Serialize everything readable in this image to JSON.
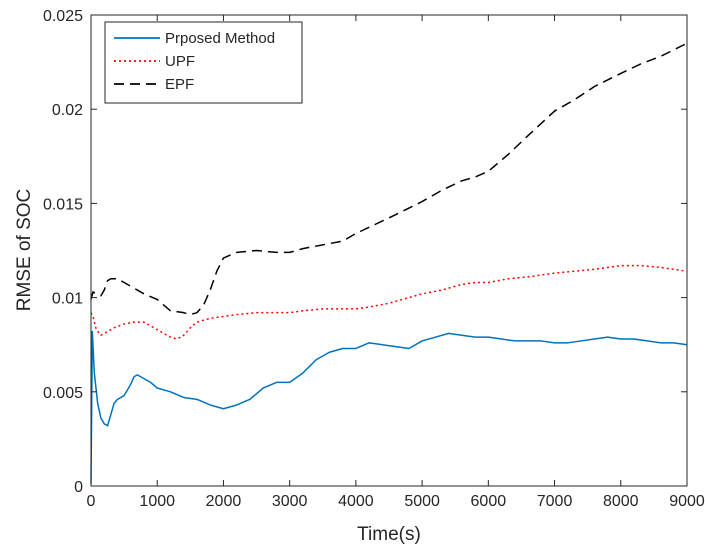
{
  "chart_data": {
    "type": "line",
    "title": "",
    "xlabel": "Time(s)",
    "ylabel": "RMSE of SOC",
    "xlim": [
      0,
      9000
    ],
    "ylim": [
      0,
      0.025
    ],
    "xticks": [
      0,
      1000,
      2000,
      3000,
      4000,
      5000,
      6000,
      7000,
      8000,
      9000
    ],
    "xtick_labels": [
      "0",
      "1000",
      "2000",
      "3000",
      "4000",
      "5000",
      "6000",
      "7000",
      "8000",
      "9000"
    ],
    "yticks": [
      0,
      0.005,
      0.01,
      0.015,
      0.02,
      0.025
    ],
    "ytick_labels": [
      "0",
      "0.005",
      "0.01",
      "0.015",
      "0.02",
      "0.025"
    ],
    "grid": false,
    "legend_position": "top-left",
    "series": [
      {
        "name": "Prposed Method",
        "color": "#0072BD",
        "style": "solid",
        "x": [
          0,
          20,
          50,
          100,
          150,
          200,
          250,
          300,
          350,
          400,
          500,
          600,
          650,
          700,
          800,
          900,
          1000,
          1200,
          1400,
          1600,
          1800,
          2000,
          2200,
          2400,
          2600,
          2800,
          3000,
          3200,
          3400,
          3600,
          3800,
          4000,
          4200,
          4400,
          4600,
          4800,
          5000,
          5200,
          5400,
          5600,
          5800,
          6000,
          6200,
          6400,
          6600,
          6800,
          7000,
          7200,
          7400,
          7600,
          7800,
          8000,
          8200,
          8400,
          8600,
          8800,
          9000
        ],
        "y": [
          0.0001,
          0.0082,
          0.006,
          0.0044,
          0.0036,
          0.0033,
          0.0032,
          0.0038,
          0.0044,
          0.0046,
          0.0048,
          0.0054,
          0.0058,
          0.0059,
          0.0057,
          0.0055,
          0.0052,
          0.005,
          0.0047,
          0.0046,
          0.0043,
          0.0041,
          0.0043,
          0.0046,
          0.0052,
          0.0055,
          0.0055,
          0.006,
          0.0067,
          0.0071,
          0.0073,
          0.0073,
          0.0076,
          0.0075,
          0.0074,
          0.0073,
          0.0077,
          0.0079,
          0.0081,
          0.008,
          0.0079,
          0.0079,
          0.0078,
          0.0077,
          0.0077,
          0.0077,
          0.0076,
          0.0076,
          0.0077,
          0.0078,
          0.0079,
          0.0078,
          0.0078,
          0.0077,
          0.0076,
          0.0076,
          0.0075
        ]
      },
      {
        "name": "UPF",
        "color": "#FF0000",
        "style": "dotted",
        "x": [
          0,
          30,
          80,
          150,
          250,
          350,
          500,
          650,
          800,
          1000,
          1200,
          1300,
          1400,
          1500,
          1600,
          1800,
          2000,
          2200,
          2500,
          2800,
          3000,
          3200,
          3500,
          3800,
          4000,
          4200,
          4500,
          4800,
          5000,
          5300,
          5600,
          5800,
          6000,
          6300,
          6600,
          7000,
          7300,
          7600,
          8000,
          8300,
          8600,
          9000
        ],
        "y": [
          0.0092,
          0.009,
          0.0083,
          0.008,
          0.0082,
          0.0084,
          0.0086,
          0.0087,
          0.0087,
          0.0083,
          0.0079,
          0.0078,
          0.008,
          0.0084,
          0.0087,
          0.0089,
          0.009,
          0.0091,
          0.0092,
          0.0092,
          0.0092,
          0.0093,
          0.0094,
          0.0094,
          0.0094,
          0.0095,
          0.0097,
          0.01,
          0.0102,
          0.0104,
          0.0107,
          0.0108,
          0.0108,
          0.011,
          0.0111,
          0.0113,
          0.0114,
          0.0115,
          0.0117,
          0.0117,
          0.0116,
          0.0114
        ]
      },
      {
        "name": "EPF",
        "color": "#000000",
        "style": "dashed",
        "x": [
          0,
          30,
          80,
          150,
          200,
          250,
          300,
          350,
          400,
          500,
          600,
          700,
          800,
          1000,
          1200,
          1400,
          1500,
          1600,
          1700,
          1800,
          1900,
          2000,
          2200,
          2500,
          2800,
          3000,
          3200,
          3500,
          3800,
          4000,
          4300,
          4600,
          5000,
          5300,
          5600,
          5800,
          6000,
          6300,
          6600,
          7000,
          7300,
          7600,
          8000,
          8300,
          8600,
          9000
        ],
        "y": [
          0.0099,
          0.0103,
          0.0102,
          0.0101,
          0.0104,
          0.0109,
          0.011,
          0.011,
          0.011,
          0.0108,
          0.0106,
          0.0104,
          0.0102,
          0.0099,
          0.0093,
          0.0092,
          0.0091,
          0.0092,
          0.0096,
          0.0104,
          0.0114,
          0.0121,
          0.0124,
          0.0125,
          0.0124,
          0.0124,
          0.0126,
          0.0128,
          0.013,
          0.0134,
          0.0139,
          0.0144,
          0.0151,
          0.0157,
          0.0162,
          0.0164,
          0.0167,
          0.0176,
          0.0186,
          0.0199,
          0.0205,
          0.0212,
          0.0219,
          0.0224,
          0.0228,
          0.0235
        ]
      }
    ]
  }
}
